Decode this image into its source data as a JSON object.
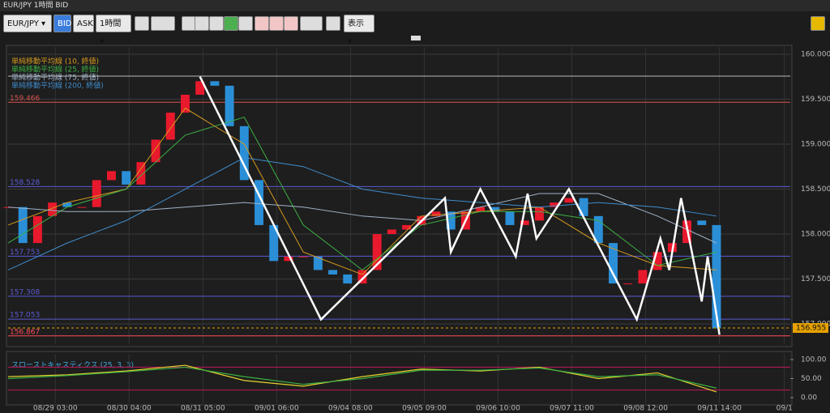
{
  "window": {
    "title": "EUR/JPY 1時間 BID"
  },
  "toolbar": {
    "symbol": "EUR/JPY",
    "bid": "BID",
    "ask": "ASK",
    "timeframe": "1時間",
    "display": "表示"
  },
  "chart_data": [
    {
      "type": "candlestick",
      "x": [
        0,
        5,
        10,
        15,
        20,
        25,
        30,
        35,
        40,
        45,
        50,
        55,
        60,
        65,
        70,
        75,
        80,
        85,
        90,
        95,
        100,
        105,
        110,
        115,
        120,
        125,
        130,
        135,
        140,
        145,
        150,
        155,
        160,
        165,
        170,
        175,
        180,
        185,
        190,
        195,
        200,
        205,
        210,
        215,
        220,
        225,
        230,
        235,
        240
      ],
      "values": [
        158.3,
        157.9,
        158.2,
        158.35,
        158.3,
        158.3,
        158.6,
        158.7,
        158.55,
        158.8,
        159.05,
        159.35,
        159.55,
        159.7,
        159.65,
        159.2,
        158.6,
        158.1,
        157.7,
        157.75,
        157.75,
        157.6,
        157.55,
        157.45,
        157.6,
        158.0,
        158.05,
        158.1,
        158.2,
        158.25,
        158.05,
        158.25,
        158.3,
        158.25,
        158.1,
        158.15,
        158.3,
        158.35,
        158.4,
        158.2,
        157.9,
        157.45,
        157.45,
        157.6,
        157.8,
        157.9,
        158.15,
        158.1,
        156.95
      ],
      "up_color": "#e8192c",
      "down_color": "#2b8fd8",
      "series": [
        {
          "name": "単純移動平均線 (10, 終値)",
          "color": "#d49a1e",
          "x": [
            0,
            20,
            40,
            60,
            80,
            100,
            120,
            140,
            160,
            180,
            200,
            220,
            240
          ],
          "values": [
            158.1,
            158.35,
            158.5,
            159.4,
            159.0,
            157.8,
            157.55,
            158.2,
            158.25,
            158.3,
            157.9,
            157.65,
            157.6
          ]
        },
        {
          "name": "単純移動平均線 (25, 終値)",
          "color": "#3cb043",
          "x": [
            0,
            20,
            40,
            60,
            80,
            100,
            120,
            140,
            160,
            180,
            200,
            220,
            240
          ],
          "values": [
            157.9,
            158.3,
            158.5,
            159.1,
            159.3,
            158.1,
            157.6,
            158.1,
            158.25,
            158.25,
            158.15,
            157.65,
            157.8
          ]
        },
        {
          "name": "単純移動平均線 (75, 終値)",
          "color": "#9fb3c8",
          "x": [
            0,
            20,
            40,
            60,
            80,
            100,
            120,
            140,
            160,
            180,
            200,
            220,
            240
          ],
          "values": [
            158.3,
            158.25,
            158.25,
            158.3,
            158.35,
            158.3,
            158.2,
            158.15,
            158.3,
            158.45,
            158.45,
            158.2,
            157.9
          ]
        },
        {
          "name": "単純移動平均線 (200, 終値)",
          "color": "#3f8ccc",
          "x": [
            0,
            20,
            40,
            60,
            80,
            100,
            120,
            140,
            160,
            180,
            200,
            220,
            240
          ],
          "values": [
            157.6,
            157.9,
            158.15,
            158.5,
            158.85,
            158.75,
            158.5,
            158.4,
            158.35,
            158.3,
            158.35,
            158.3,
            158.2
          ]
        }
      ],
      "zigzag": {
        "color": "#ffffff",
        "x": [
          65,
          106,
          148,
          150,
          160,
          172,
          176,
          179,
          190,
          213,
          221,
          224,
          228,
          235,
          237,
          241
        ],
        "values": [
          159.75,
          157.05,
          158.4,
          157.8,
          158.5,
          157.75,
          158.45,
          157.95,
          158.5,
          157.05,
          157.95,
          157.6,
          158.4,
          157.25,
          157.75,
          156.88
        ]
      },
      "levels": [
        {
          "value": 159.757,
          "color": "#bbbbbb"
        },
        {
          "value": 159.466,
          "color": "#d9534f"
        },
        {
          "value": 158.528,
          "color": "#5b5bd6"
        },
        {
          "value": 157.753,
          "color": "#5b5bd6"
        },
        {
          "value": 157.308,
          "color": "#5b5bd6"
        },
        {
          "value": 157.053,
          "color": "#5b5bd6"
        },
        {
          "value": 156.867,
          "color": "#ff4d5a"
        }
      ],
      "current_price": 156.955,
      "xlim": [
        0,
        265
      ],
      "ylim": [
        156.775,
        160.081
      ],
      "yticks": [
        {
          "value": 157,
          "label": "157.000"
        },
        {
          "value": 157.5,
          "label": "157.500"
        },
        {
          "value": 158,
          "label": "158.000"
        },
        {
          "value": 158.5,
          "label": "158.500"
        },
        {
          "value": 159,
          "label": "159.000"
        },
        {
          "value": 159.5,
          "label": "159.500"
        },
        {
          "value": 160,
          "label": "160.000"
        }
      ],
      "xticks": [
        {
          "value": 16,
          "label": "08/29 03:00"
        },
        {
          "value": 41,
          "label": "08/30 04:00"
        },
        {
          "value": 66,
          "label": "08/31 05:00"
        },
        {
          "value": 91,
          "label": "09/01 06:00"
        },
        {
          "value": 116,
          "label": "09/04 08:00"
        },
        {
          "value": 141,
          "label": "09/05 09:00"
        },
        {
          "value": 166,
          "label": "09/06 10:00"
        },
        {
          "value": 191,
          "label": "09/07 11:00"
        },
        {
          "value": 216,
          "label": "09/08 12:00"
        },
        {
          "value": 241,
          "label": "09/11 14:00"
        },
        {
          "value": 263,
          "label": "09/1"
        }
      ],
      "grid": true
    },
    {
      "type": "line",
      "title": "スローストキャスティクス (25, 3, 3)",
      "series": [
        {
          "color": "#e6d22e",
          "x": [
            0,
            20,
            40,
            60,
            80,
            100,
            120,
            140,
            160,
            180,
            200,
            220,
            240
          ],
          "values": [
            55,
            60,
            70,
            85,
            45,
            30,
            55,
            75,
            70,
            80,
            50,
            65,
            15
          ]
        },
        {
          "color": "#3cb043",
          "x": [
            0,
            20,
            40,
            60,
            80,
            100,
            120,
            140,
            160,
            180,
            200,
            220,
            240
          ],
          "values": [
            50,
            58,
            68,
            80,
            55,
            35,
            50,
            72,
            72,
            78,
            55,
            60,
            25
          ]
        }
      ],
      "bands": [
        80,
        20
      ],
      "band_color": "#c2185b",
      "xlim": [
        0,
        265
      ],
      "ylim": [
        -15,
        115
      ],
      "yticks": [
        {
          "value": 0,
          "label": "0.00"
        },
        {
          "value": 50,
          "label": "50.00"
        },
        {
          "value": 100,
          "label": "100.00"
        }
      ]
    }
  ]
}
